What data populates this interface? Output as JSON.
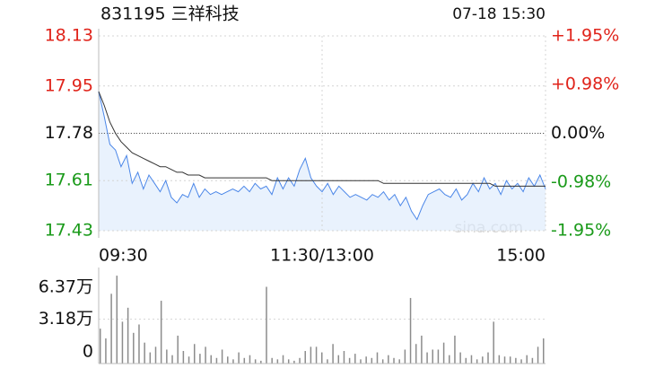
{
  "chart_data": [
    {
      "type": "line",
      "title": "831195 三祥科技",
      "date": "07-18 15:30",
      "watermark": "sina.com",
      "x": [
        0,
        3,
        6,
        9,
        12,
        15,
        18,
        21,
        24,
        27,
        30,
        33,
        36,
        39,
        42,
        45,
        48,
        51,
        54,
        57,
        60,
        63,
        66,
        69,
        72,
        75,
        78,
        81,
        84,
        87,
        90,
        93,
        96,
        99,
        102,
        105,
        108,
        111,
        114,
        117,
        120,
        123,
        126,
        129,
        132,
        135,
        138,
        141,
        144,
        147,
        150,
        153,
        156,
        159,
        162,
        165,
        168,
        171,
        174,
        177,
        180,
        183,
        186,
        189,
        192,
        195,
        198,
        201,
        204,
        207,
        210,
        213,
        216,
        219,
        222,
        225,
        228,
        231,
        234,
        237,
        240
      ],
      "xlim": [
        0,
        240
      ],
      "xticks": [
        {
          "value": 0,
          "label": "09:30"
        },
        {
          "value": 120,
          "label": "11:30/13:00"
        },
        {
          "value": 240,
          "label": "15:00"
        }
      ],
      "ylim": [
        17.43,
        18.13
      ],
      "yticks": [
        18.13,
        17.95,
        17.78,
        17.61,
        17.43
      ],
      "y2lim": [
        -1.95,
        1.95
      ],
      "y2ticks": [
        {
          "value": 1.95,
          "label": "+1.95%"
        },
        {
          "value": 0.98,
          "label": "+0.98%"
        },
        {
          "value": 0,
          "label": "0.00%"
        },
        {
          "value": -0.98,
          "label": "-0.98%"
        },
        {
          "value": -1.95,
          "label": "-1.95%"
        }
      ],
      "grid": true,
      "series": [
        {
          "color": "#4a86e8",
          "fill": "#dbe9fb",
          "values": [
            17.93,
            17.84,
            17.74,
            17.72,
            17.66,
            17.7,
            17.6,
            17.64,
            17.58,
            17.63,
            17.6,
            17.57,
            17.61,
            17.55,
            17.53,
            17.56,
            17.55,
            17.6,
            17.55,
            17.58,
            17.56,
            17.57,
            17.56,
            17.57,
            17.58,
            17.57,
            17.59,
            17.57,
            17.6,
            17.58,
            17.59,
            17.56,
            17.62,
            17.58,
            17.62,
            17.59,
            17.65,
            17.69,
            17.62,
            17.59,
            17.57,
            17.6,
            17.56,
            17.59,
            17.57,
            17.55,
            17.56,
            17.55,
            17.54,
            17.56,
            17.55,
            17.57,
            17.54,
            17.56,
            17.52,
            17.55,
            17.5,
            17.47,
            17.52,
            17.56,
            17.57,
            17.58,
            17.56,
            17.55,
            17.58,
            17.54,
            17.56,
            17.6,
            17.57,
            17.62,
            17.58,
            17.6,
            17.56,
            17.61,
            17.58,
            17.6,
            17.57,
            17.62,
            17.59,
            17.63,
            17.58
          ]
        },
        {
          "color": "#333333",
          "values": [
            17.93,
            17.88,
            17.82,
            17.78,
            17.75,
            17.73,
            17.71,
            17.7,
            17.69,
            17.68,
            17.67,
            17.66,
            17.66,
            17.65,
            17.64,
            17.64,
            17.63,
            17.63,
            17.63,
            17.62,
            17.62,
            17.62,
            17.62,
            17.62,
            17.62,
            17.62,
            17.62,
            17.62,
            17.62,
            17.62,
            17.62,
            17.61,
            17.61,
            17.61,
            17.61,
            17.61,
            17.61,
            17.61,
            17.61,
            17.61,
            17.61,
            17.61,
            17.61,
            17.61,
            17.61,
            17.61,
            17.61,
            17.61,
            17.61,
            17.61,
            17.61,
            17.6,
            17.6,
            17.6,
            17.6,
            17.6,
            17.6,
            17.6,
            17.6,
            17.6,
            17.6,
            17.6,
            17.6,
            17.6,
            17.6,
            17.6,
            17.6,
            17.6,
            17.6,
            17.6,
            17.6,
            17.59,
            17.59,
            17.59,
            17.59,
            17.59,
            17.59,
            17.59,
            17.59,
            17.59,
            17.59
          ]
        }
      ]
    },
    {
      "type": "bar",
      "x": [
        0,
        3,
        6,
        9,
        12,
        15,
        18,
        21,
        24,
        27,
        30,
        33,
        36,
        39,
        42,
        45,
        48,
        51,
        54,
        57,
        60,
        63,
        66,
        69,
        72,
        75,
        78,
        81,
        84,
        87,
        90,
        93,
        96,
        99,
        102,
        105,
        108,
        111,
        114,
        117,
        120,
        123,
        126,
        129,
        132,
        135,
        138,
        141,
        144,
        147,
        150,
        153,
        156,
        159,
        162,
        165,
        168,
        171,
        174,
        177,
        180,
        183,
        186,
        189,
        192,
        195,
        198,
        201,
        204,
        207,
        210,
        213,
        216,
        219,
        222,
        225,
        228,
        231,
        234,
        237,
        240
      ],
      "xlim": [
        0,
        240
      ],
      "ylim": [
        0,
        63700
      ],
      "yticks": [
        {
          "value": 63700,
          "label": "6.37万"
        },
        {
          "value": 31800,
          "label": "3.18万"
        },
        0
      ],
      "grid": true,
      "color": "#8c8c8c",
      "values": [
        25000,
        18000,
        50000,
        63000,
        30000,
        40000,
        22000,
        28000,
        15000,
        8000,
        12000,
        45000,
        10000,
        6000,
        20000,
        9000,
        5000,
        14000,
        7000,
        12000,
        6000,
        4000,
        10000,
        5000,
        3000,
        8000,
        4000,
        6000,
        3000,
        2000,
        55000,
        4000,
        3000,
        6000,
        3000,
        2000,
        4000,
        9000,
        12000,
        12000,
        8000,
        3000,
        14000,
        6000,
        9000,
        4000,
        7000,
        3000,
        5000,
        4000,
        8000,
        3000,
        6000,
        4000,
        3000,
        10000,
        47000,
        14000,
        20000,
        8000,
        10000,
        10000,
        15000,
        6000,
        20000,
        8000,
        4000,
        6000,
        3000,
        5000,
        8000,
        30000,
        6000,
        5000,
        5000,
        4000,
        3000,
        6000,
        4000,
        12000,
        18000
      ]
    }
  ]
}
